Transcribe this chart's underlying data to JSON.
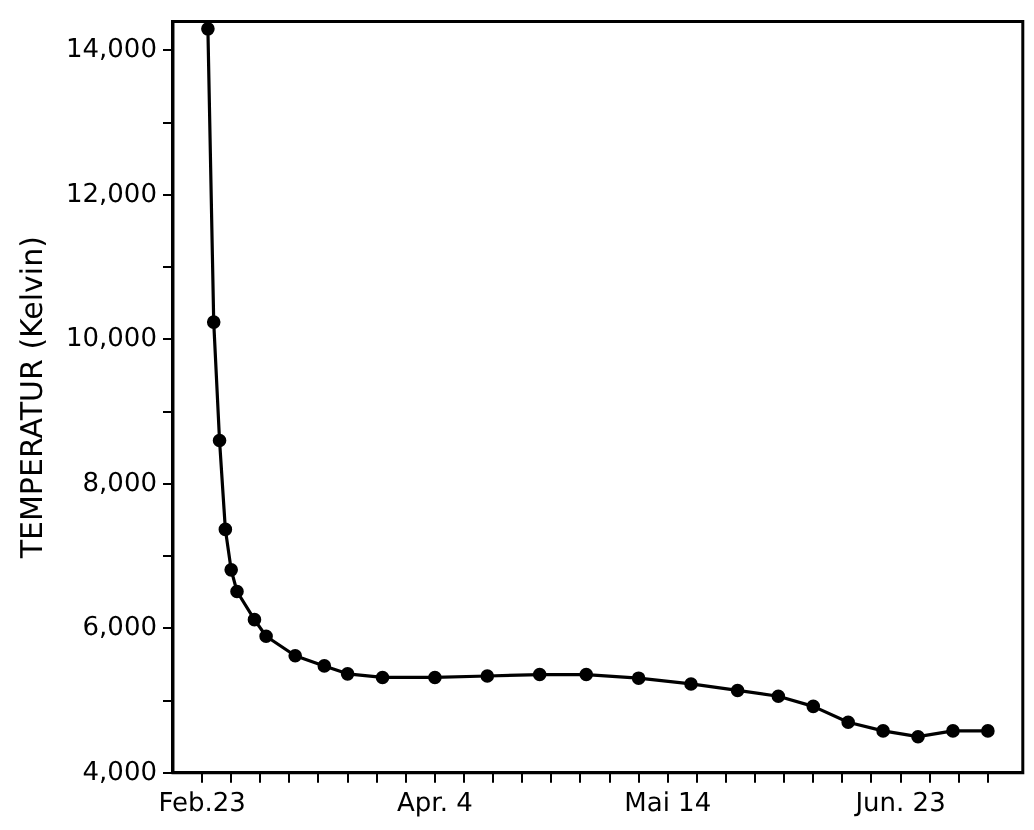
{
  "chart_data": {
    "type": "line",
    "ylabel": "TEMPERATUR (Kelvin)",
    "x": [
      "--02-24",
      "--02-25",
      "--02-26",
      "--02-27",
      "--02-28",
      "--03-01",
      "--03-04",
      "--03-06",
      "--03-11",
      "--03-16",
      "--03-20",
      "--03-26",
      "--04-04",
      "--04-13",
      "--04-22",
      "--04-30",
      "--05-09",
      "--05-18",
      "--05-26",
      "--06-02",
      "--06-08",
      "--06-14",
      "--06-20",
      "--06-26",
      "--07-02",
      "--07-08"
    ],
    "series": [
      {
        "color": "#000000",
        "values": [
          14300,
          10240,
          8600,
          7370,
          6810,
          6510,
          6120,
          5890,
          5620,
          5480,
          5370,
          5320,
          5320,
          5340,
          5360,
          5360,
          5310,
          5230,
          5140,
          5060,
          4920,
          4700,
          4580,
          4500,
          4580,
          4580
        ]
      }
    ],
    "xlim": [
      "--02-18",
      "--07-14"
    ],
    "ylim": [
      4000,
      14400
    ],
    "xticks": [
      {
        "value": "--02-23",
        "label": "Feb.23"
      },
      {
        "value": "--02-28",
        "label": null
      },
      {
        "value": "--03-05",
        "label": null
      },
      {
        "value": "--03-10",
        "label": null
      },
      {
        "value": "--03-15",
        "label": null
      },
      {
        "value": "--03-20",
        "label": null
      },
      {
        "value": "--03-25",
        "label": null
      },
      {
        "value": "--03-30",
        "label": null
      },
      {
        "value": "--04-04",
        "label": "Apr. 4"
      },
      {
        "value": "--04-09",
        "label": null
      },
      {
        "value": "--04-14",
        "label": null
      },
      {
        "value": "--04-19",
        "label": null
      },
      {
        "value": "--04-24",
        "label": null
      },
      {
        "value": "--04-29",
        "label": null
      },
      {
        "value": "--05-04",
        "label": null
      },
      {
        "value": "--05-09",
        "label": null
      },
      {
        "value": "--05-14",
        "label": "Mai 14"
      },
      {
        "value": "--05-19",
        "label": null
      },
      {
        "value": "--05-24",
        "label": null
      },
      {
        "value": "--05-29",
        "label": null
      },
      {
        "value": "--06-03",
        "label": null
      },
      {
        "value": "--06-08",
        "label": null
      },
      {
        "value": "--06-13",
        "label": null
      },
      {
        "value": "--06-18",
        "label": null
      },
      {
        "value": "--06-23",
        "label": "Jun. 23"
      },
      {
        "value": "--06-28",
        "label": null
      },
      {
        "value": "--07-03",
        "label": null
      },
      {
        "value": "--07-08",
        "label": null
      }
    ],
    "yticks": [
      {
        "value": 4000,
        "label": "4,000"
      },
      {
        "value": 5000,
        "label": null
      },
      {
        "value": 6000,
        "label": "6,000"
      },
      {
        "value": 7000,
        "label": null
      },
      {
        "value": 8000,
        "label": "8,000"
      },
      {
        "value": 9000,
        "label": null
      },
      {
        "value": 10000,
        "label": "10,000"
      },
      {
        "value": 11000,
        "label": null
      },
      {
        "value": 12000,
        "label": "12,000"
      },
      {
        "value": 13000,
        "label": null
      },
      {
        "value": 14000,
        "label": "14,000"
      }
    ],
    "marker": "circle",
    "line_style": "solid",
    "grid": false,
    "legend": false
  }
}
